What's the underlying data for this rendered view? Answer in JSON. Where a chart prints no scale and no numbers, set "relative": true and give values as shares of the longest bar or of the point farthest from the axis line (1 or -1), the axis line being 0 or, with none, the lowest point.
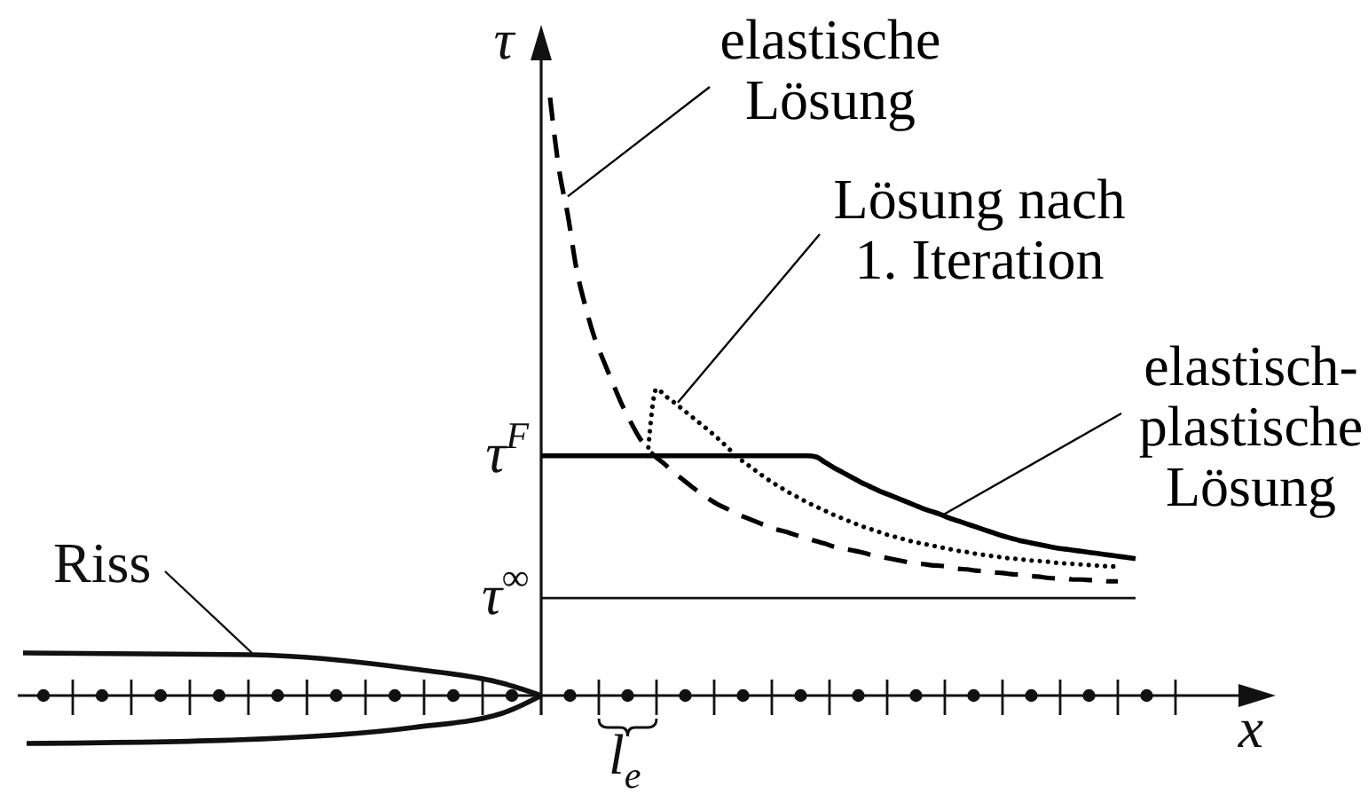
{
  "chart_data": {
    "type": "line",
    "relative": true,
    "xlabel": "x",
    "ylabel": "τ",
    "categories": [
      null,
      null,
      null,
      null,
      null,
      null,
      null,
      null,
      null,
      null,
      null,
      null,
      null,
      null,
      null,
      null,
      null,
      null,
      null,
      null,
      null,
      null,
      null,
      null,
      null,
      null,
      null,
      null,
      null,
      null,
      null,
      null,
      null,
      null,
      null,
      null,
      null,
      null,
      null,
      null,
      null,
      null,
      null,
      null,
      null,
      null,
      null,
      null,
      null,
      null,
      null,
      null,
      null,
      null,
      null,
      null,
      null,
      null,
      null,
      null,
      null,
      null,
      null,
      null,
      null,
      null,
      null,
      null
    ],
    "series": [
      {
        "name": "elastische\nLösung",
        "color": "#000000",
        "line_style": "dashed",
        "values": [
          null,
          1,
          0.881,
          0.804,
          0.712,
          0.65,
          0.599,
          0.561,
          0.525,
          0.49,
          0.46,
          0.433,
          0.412,
          0.398,
          0.386,
          0.372,
          0.361,
          0.349,
          0.338,
          0.328,
          0.319,
          0.312,
          0.304,
          0.298,
          0.292,
          0.286,
          0.28,
          0.276,
          0.272,
          0.267,
          0.263,
          0.258,
          0.254,
          0.249,
          0.246,
          0.243,
          0.24,
          0.236,
          0.233,
          0.23,
          0.227,
          0.224,
          0.221,
          0.22,
          0.218,
          0.217,
          0.215,
          0.212,
          0.211,
          0.209,
          0.208,
          0.206,
          0.205,
          0.203,
          0.202,
          0.2,
          0.199,
          0.197,
          0.196,
          0.196,
          0.194,
          0.194,
          0.193,
          0.193,
          0.191,
          0.191,
          null,
          null
        ]
      },
      {
        "name": "Lösung nach\n1. Iteration",
        "color": "#000000",
        "line_style": "dotted",
        "values": [
          null,
          null,
          null,
          null,
          null,
          null,
          null,
          null,
          null,
          null,
          null,
          null,
          0.401,
          0.513,
          0.501,
          0.49,
          0.478,
          0.466,
          0.454,
          0.442,
          0.429,
          0.415,
          0.4,
          0.389,
          0.378,
          0.367,
          0.357,
          0.348,
          0.339,
          0.331,
          0.323,
          0.316,
          0.309,
          0.302,
          0.296,
          0.29,
          0.284,
          0.279,
          0.274,
          0.269,
          0.265,
          0.261,
          0.257,
          0.254,
          0.251,
          0.248,
          0.245,
          0.242,
          0.24,
          0.237,
          0.235,
          0.233,
          0.231,
          0.229,
          0.228,
          0.226,
          0.225,
          0.224,
          0.222,
          0.221,
          0.22,
          0.219,
          0.218,
          0.217,
          0.216,
          0.216,
          null,
          null
        ]
      },
      {
        "name": "elastisch-\nplastische\nLösung",
        "color": "#000000",
        "line_style": "solid",
        "values": [
          0.401,
          0.401,
          0.401,
          0.401,
          0.401,
          0.401,
          0.401,
          0.401,
          0.401,
          0.401,
          0.401,
          0.401,
          0.401,
          0.401,
          0.401,
          0.401,
          0.401,
          0.401,
          0.401,
          0.401,
          0.401,
          0.401,
          0.401,
          0.401,
          0.401,
          0.401,
          0.401,
          0.401,
          0.401,
          0.401,
          0.401,
          0.399,
          0.39,
          0.381,
          0.373,
          0.365,
          0.357,
          0.35,
          0.343,
          0.337,
          0.331,
          0.325,
          0.319,
          0.313,
          0.308,
          0.303,
          0.297,
          0.292,
          0.287,
          0.282,
          0.277,
          0.272,
          0.267,
          0.263,
          0.259,
          0.256,
          0.253,
          0.25,
          0.247,
          0.245,
          0.243,
          0.241,
          0.239,
          0.237,
          0.235,
          0.233,
          0.231,
          0.229
        ]
      }
    ],
    "ref_lines": [
      {
        "axis": "y",
        "value": 0.163,
        "label": "τ$^{∞}$"
      }
    ],
    "annotations": [
      "τ$^{F}$",
      "Riss",
      "l$_{e}$"
    ]
  }
}
